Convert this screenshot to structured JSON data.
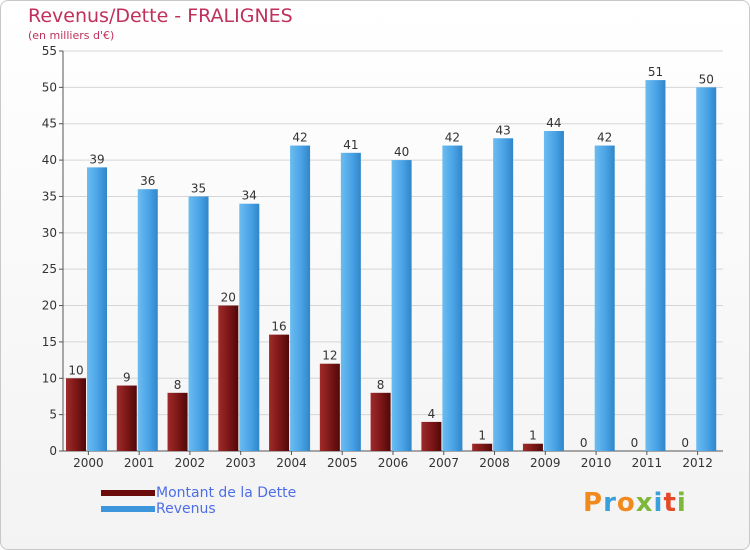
{
  "title": "Revenus/Dette - FRALIGNES",
  "subtitle": "(en milliers d'€)",
  "chart_data": {
    "type": "bar",
    "categories": [
      "2000",
      "2001",
      "2002",
      "2003",
      "2004",
      "2005",
      "2006",
      "2007",
      "2008",
      "2009",
      "2010",
      "2011",
      "2012"
    ],
    "series": [
      {
        "name": "Montant de la Dette",
        "color": "#7a1818",
        "values": [
          10,
          9,
          8,
          20,
          16,
          12,
          8,
          4,
          1,
          1,
          0,
          0,
          0
        ]
      },
      {
        "name": "Revenus",
        "color": "#4aa3e6",
        "values": [
          39,
          36,
          35,
          34,
          42,
          41,
          40,
          42,
          43,
          44,
          42,
          51,
          50
        ]
      }
    ],
    "yticks": [
      0,
      5,
      10,
      15,
      20,
      25,
      30,
      35,
      40,
      45,
      50,
      55
    ],
    "ylim": [
      0,
      55
    ],
    "grid": true,
    "legend_position": "bottom-left"
  },
  "legend": {
    "items": [
      {
        "label": "Montant de la Dette",
        "color": "#6b0a0a"
      },
      {
        "label": "Revenus",
        "color": "#3d95dc"
      }
    ]
  },
  "logo": {
    "text": "Proxiti",
    "letters": [
      "P",
      "r",
      "o",
      "x",
      "i",
      "t",
      "i"
    ],
    "colors": [
      "#f08a1e",
      "#3aa0dc",
      "#f08a1e",
      "#7cb83a",
      "#3aa0dc",
      "#e24a2a",
      "#7cb83a"
    ]
  }
}
